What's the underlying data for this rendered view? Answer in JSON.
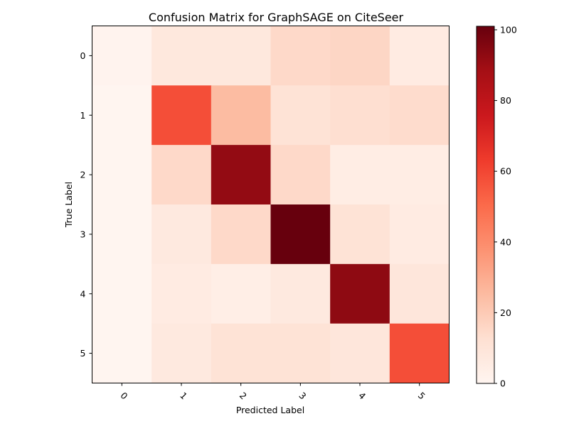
{
  "chart_data": {
    "type": "heatmap",
    "title": "Confusion Matrix for GraphSAGE on CiteSeer",
    "xlabel": "Predicted Label",
    "ylabel": "True Label",
    "x_categories": [
      "0",
      "1",
      "2",
      "3",
      "4",
      "5"
    ],
    "y_categories": [
      "0",
      "1",
      "2",
      "3",
      "4",
      "5"
    ],
    "values": [
      [
        1,
        8,
        8,
        15,
        16,
        6
      ],
      [
        0,
        58,
        25,
        11,
        13,
        14
      ],
      [
        0,
        15,
        92,
        15,
        5,
        5
      ],
      [
        0,
        7,
        15,
        101,
        11,
        6
      ],
      [
        0,
        6,
        4,
        7,
        93,
        9
      ],
      [
        0,
        7,
        11,
        11,
        9,
        58
      ]
    ],
    "colormap": "Reds",
    "colorbar": {
      "min": 0,
      "max": 101,
      "ticks": [
        "0",
        "20",
        "40",
        "60",
        "80",
        "100"
      ]
    },
    "x_tick_rotation_deg": 45,
    "grid": false
  }
}
